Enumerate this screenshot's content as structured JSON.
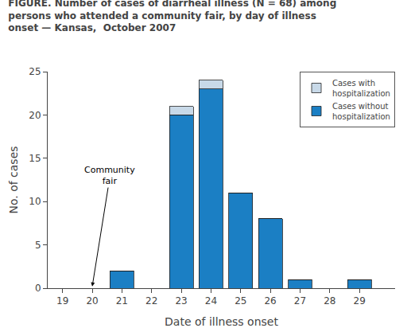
{
  "chart_data": {
    "type": "bar",
    "title": "FIGURE. Number of cases of diarrheal illness (N = 68) among\npersons who attended a community fair, by day of illness\nonset — Kansas,  October 2007",
    "x": [
      19,
      20,
      21,
      22,
      23,
      24,
      25,
      26,
      27,
      28,
      29
    ],
    "series": [
      {
        "name": "Cases without\nhospitalization",
        "color": "#1b7fc4",
        "values": [
          0,
          0,
          2,
          0,
          20,
          23,
          11,
          8,
          1,
          0,
          1
        ]
      },
      {
        "name": "Cases with\nhospitalization",
        "color": "#c8d9e8",
        "values": [
          0,
          0,
          0,
          0,
          1,
          1,
          0,
          0,
          0,
          0,
          0
        ]
      }
    ],
    "stacked": true,
    "xlabel": "Date of illness onset",
    "ylabel": "No. of cases",
    "xlim": [
      18.5,
      30.2
    ],
    "ylim": [
      0,
      25
    ],
    "xticks": [
      19,
      20,
      21,
      22,
      23,
      24,
      25,
      26,
      27,
      28,
      29
    ],
    "yticks": [
      0,
      5,
      10,
      15,
      20,
      25
    ],
    "grid": false,
    "legend": "upper right",
    "annotations": [
      {
        "text": "Community\nfair",
        "x": 20.0,
        "y": 0.2,
        "text_x": 20.6,
        "text_y": 13.0
      }
    ]
  }
}
